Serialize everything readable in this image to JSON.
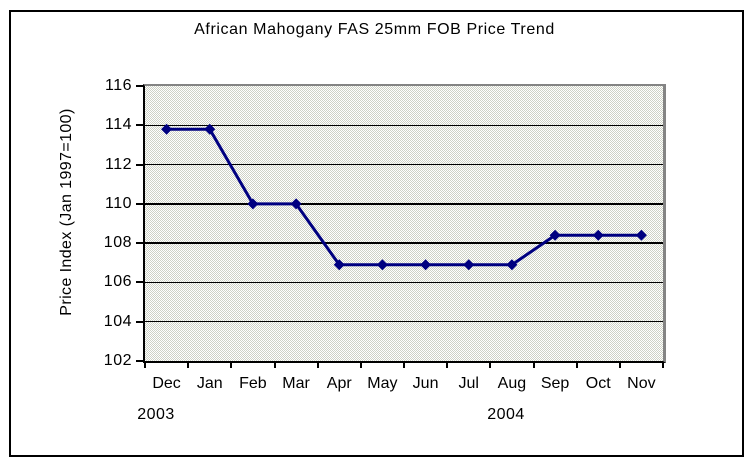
{
  "chart_data": {
    "type": "line",
    "title": "African Mahogany FAS 25mm FOB Price Trend",
    "ylabel": "Price Index (Jan 1997=100)",
    "xlabel": "",
    "categories": [
      "Dec",
      "Jan",
      "Feb",
      "Mar",
      "Apr",
      "May",
      "Jun",
      "Jul",
      "Aug",
      "Sep",
      "Oct",
      "Nov"
    ],
    "values": [
      113.8,
      113.8,
      110,
      110,
      106.9,
      106.9,
      106.9,
      106.9,
      106.9,
      108.4,
      108.4,
      108.4
    ],
    "yticks": [
      116,
      114,
      112,
      110,
      108,
      106,
      104,
      102
    ],
    "ylim": [
      102,
      116
    ],
    "grid": "horizontal",
    "legend": "none",
    "marker_shape": "diamond",
    "years": [
      {
        "label": "2003"
      },
      {
        "label": "2004"
      }
    ],
    "colors": {
      "line": "#000080",
      "marker": "#000080",
      "gridline": "#000000",
      "axis": "#000000",
      "plot_border_gray": "#848484",
      "plot_bg_light": "#ffffff",
      "plot_bg_dark": "#ced2c6",
      "text": "#000000",
      "background": "#ffffff",
      "outer_border": "#000000"
    }
  }
}
